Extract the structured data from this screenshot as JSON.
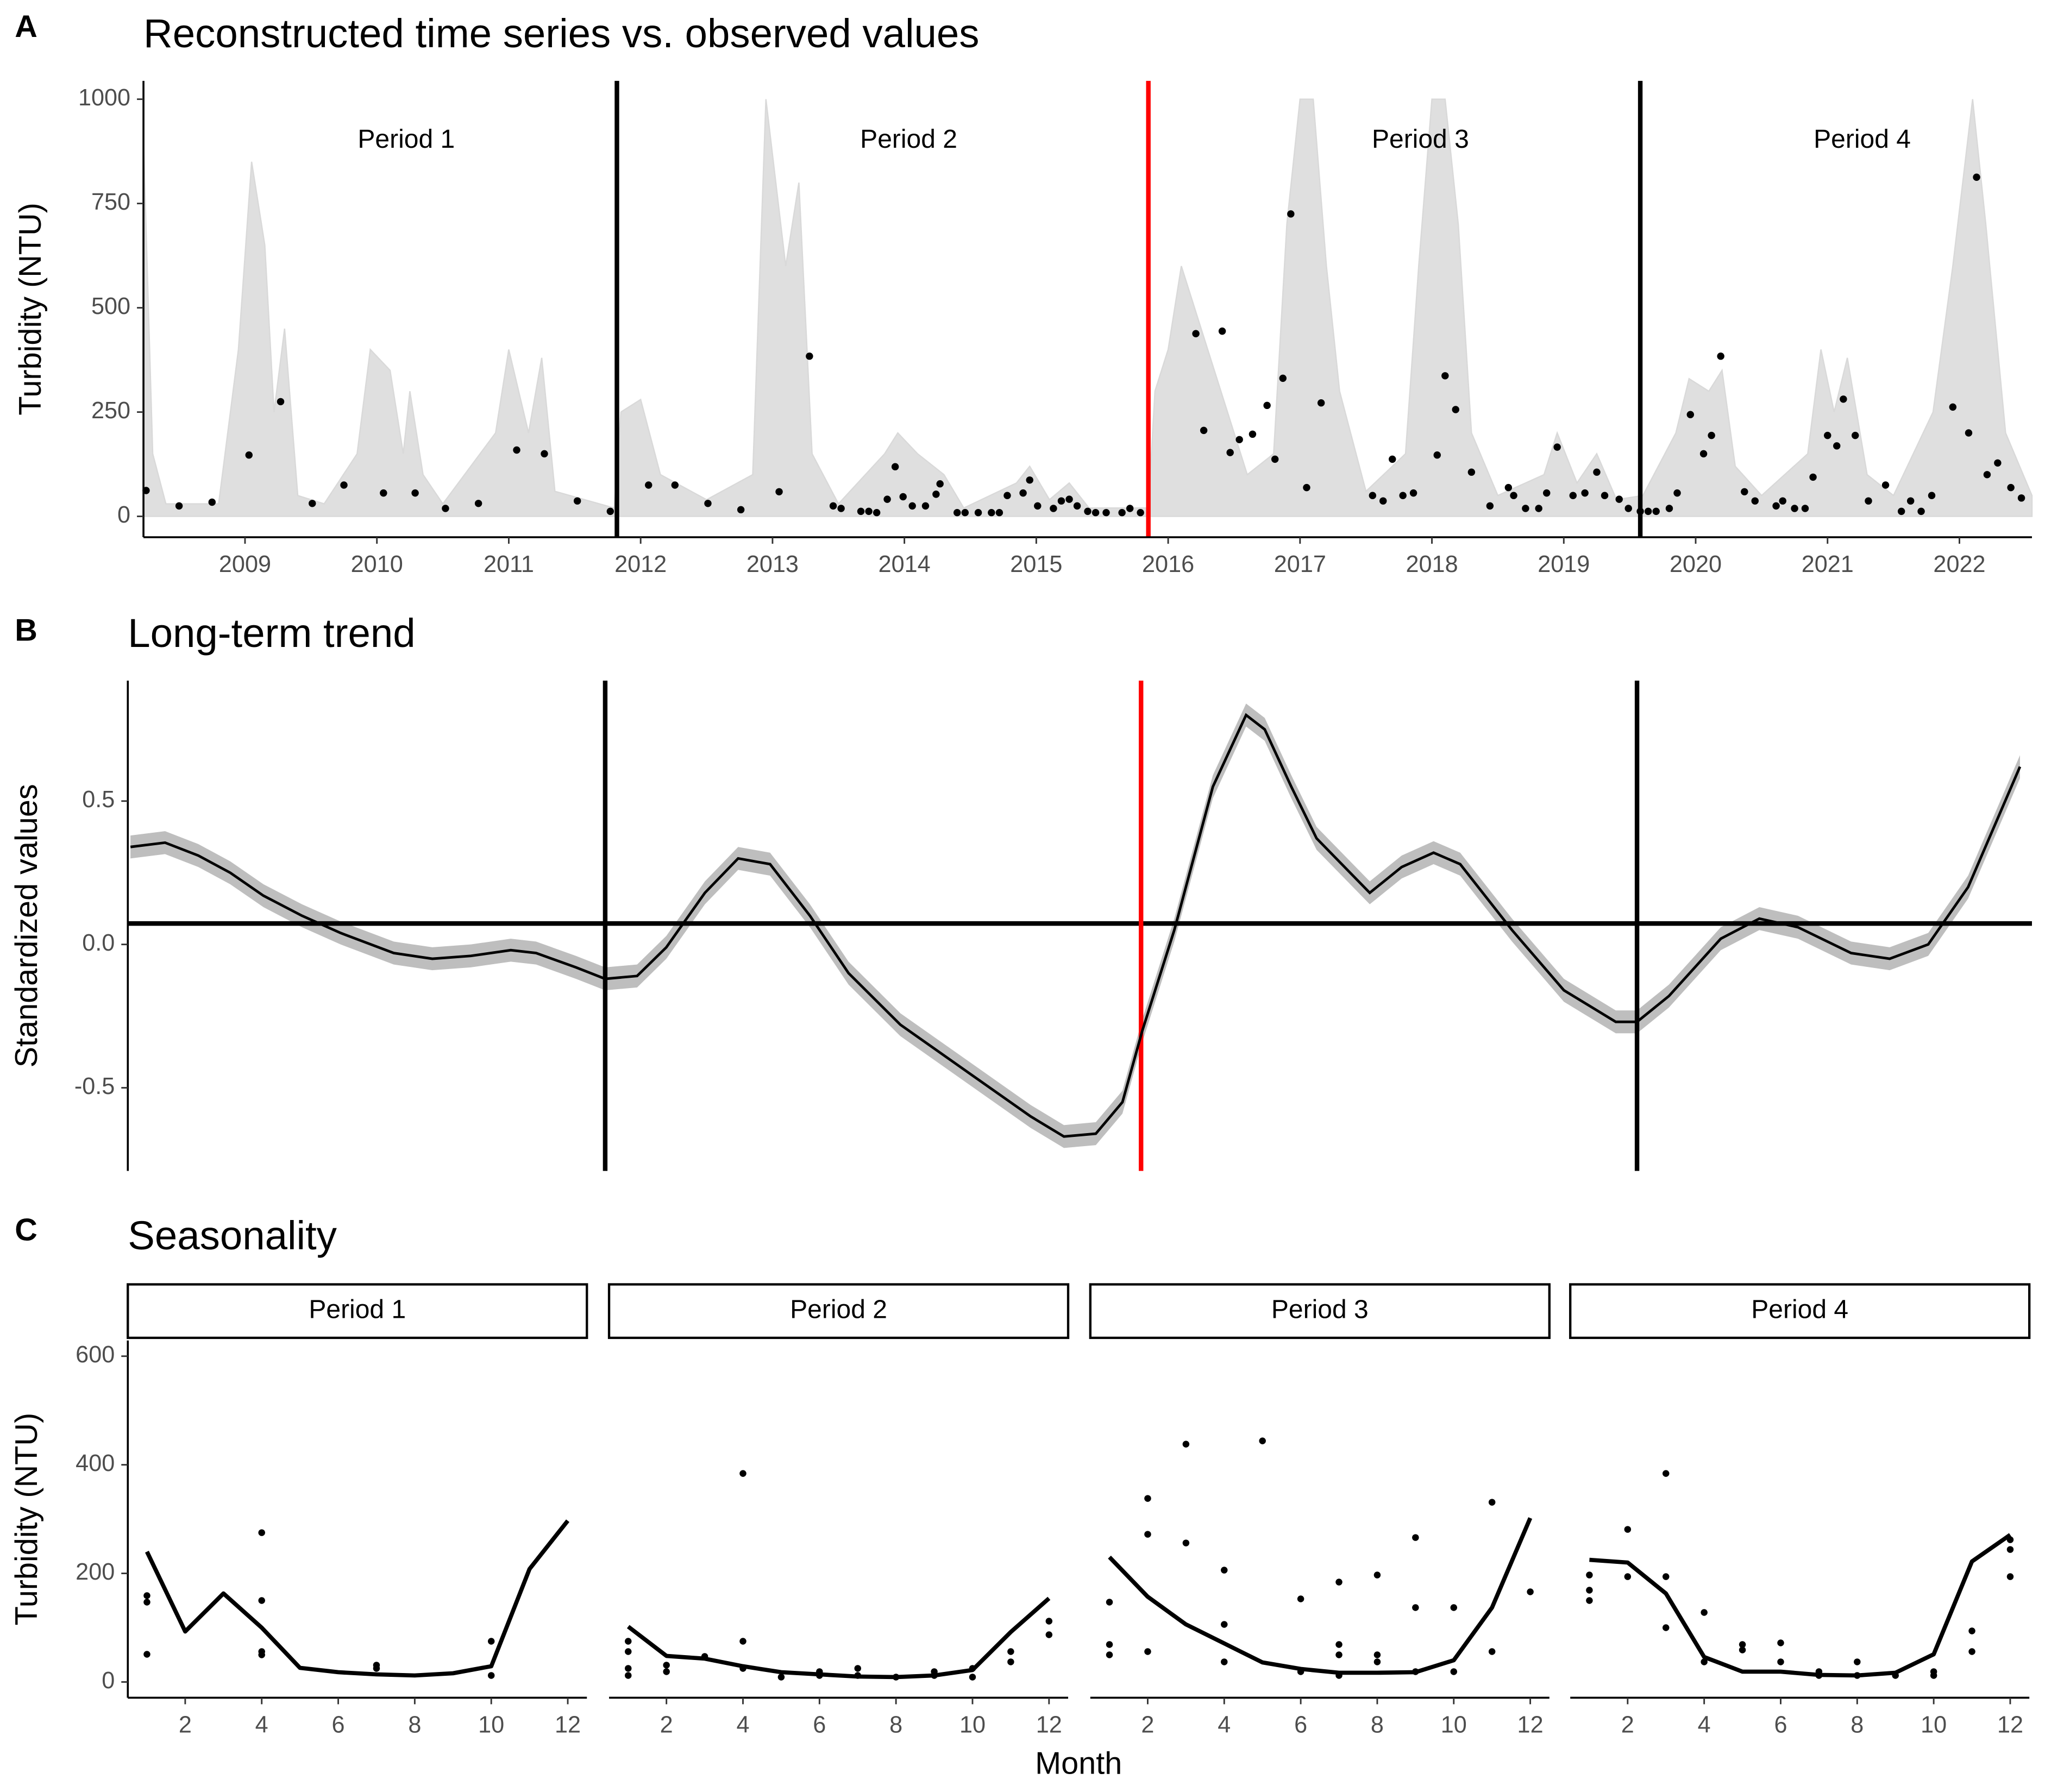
{
  "chart_data": [
    {
      "type": "scatter",
      "label": "A",
      "title": "Reconstructed time series vs. observed values",
      "ylabel": "Turbidity (NTU)",
      "color": "#000000",
      "x": [
        2008.25,
        2008.5,
        2008.75,
        2009.03,
        2009.27,
        2009.51,
        2009.75,
        2010.05,
        2010.29,
        2010.52,
        2010.77,
        2011.06,
        2011.27,
        2011.52,
        2011.77,
        2012.06,
        2012.26,
        2012.51,
        2012.76,
        2013.05,
        2013.28,
        2013.46,
        2013.52,
        2013.67,
        2013.73,
        2013.79,
        2013.87,
        2013.93,
        2013.99,
        2014.06,
        2014.16,
        2014.24,
        2014.27,
        2014.4,
        2014.46,
        2014.56,
        2014.66,
        2014.72,
        2014.78,
        2014.9,
        2014.95,
        2015.01,
        2015.13,
        2015.19,
        2015.25,
        2015.31,
        2015.39,
        2015.45,
        2015.53,
        2015.65,
        2015.71,
        2015.79,
        2016.21,
        2016.27,
        2016.41,
        2016.47,
        2016.54,
        2016.64,
        2016.75,
        2016.81,
        2016.87,
        2016.93,
        2017.05,
        2017.16,
        2017.55,
        2017.63,
        2017.7,
        2017.78,
        2017.86,
        2018.04,
        2018.1,
        2018.18,
        2018.3,
        2018.44,
        2018.58,
        2018.62,
        2018.71,
        2018.81,
        2018.87,
        2018.95,
        2019.07,
        2019.16,
        2019.25,
        2019.31,
        2019.42,
        2019.49,
        2019.58,
        2019.64,
        2019.7,
        2019.8,
        2019.86,
        2019.96,
        2020.06,
        2020.12,
        2020.19,
        2020.37,
        2020.45,
        2020.61,
        2020.66,
        2020.75,
        2020.83,
        2020.89,
        2021.0,
        2021.07,
        2021.12,
        2021.21,
        2021.31,
        2021.44,
        2021.56,
        2021.63,
        2021.71,
        2021.79,
        2021.95,
        2022.07,
        2022.13,
        2022.21,
        2022.29,
        2022.39,
        2022.47
      ],
      "values": [
        62,
        25,
        34,
        147,
        275,
        31,
        75,
        56,
        56,
        19,
        31,
        159,
        150,
        37,
        12,
        75,
        75,
        31,
        16,
        59,
        384,
        25,
        19,
        12,
        12,
        9,
        41,
        119,
        47,
        25,
        25,
        53,
        78,
        9,
        9,
        9,
        9,
        9,
        50,
        56,
        87,
        25,
        19,
        37,
        41,
        25,
        12,
        9,
        9,
        9,
        19,
        9,
        438,
        206,
        444,
        153,
        184,
        197,
        266,
        137,
        331,
        725,
        69,
        272,
        50,
        37,
        137,
        50,
        56,
        147,
        337,
        256,
        106,
        25,
        69,
        50,
        19,
        19,
        56,
        166,
        50,
        56,
        106,
        50,
        41,
        19,
        12,
        12,
        12,
        19,
        56,
        244,
        150,
        194,
        384,
        59,
        37,
        25,
        37,
        19,
        19,
        94,
        194,
        169,
        281,
        194,
        37,
        75,
        12,
        37,
        12,
        50,
        262,
        200,
        813,
        100,
        128,
        69,
        44
      ],
      "envelope": {
        "color": "#d9d9d9",
        "x": [
          2008.23,
          2008.3,
          2008.4,
          2008.8,
          2008.95,
          2009.05,
          2009.15,
          2009.22,
          2009.3,
          2009.4,
          2009.6,
          2009.85,
          2009.95,
          2010.1,
          2010.2,
          2010.25,
          2010.35,
          2010.5,
          2010.9,
          2011.0,
          2011.15,
          2011.25,
          2011.35,
          2011.8,
          2011.85,
          2012.0,
          2012.15,
          2012.5,
          2012.85,
          2012.95,
          2013.1,
          2013.2,
          2013.3,
          2013.5,
          2013.85,
          2013.95,
          2014.1,
          2014.3,
          2014.45,
          2014.85,
          2014.95,
          2015.1,
          2015.25,
          2015.4,
          2015.85,
          2015.9,
          2016.0,
          2016.1,
          2016.25,
          2016.4,
          2016.6,
          2016.8,
          2016.9,
          2017.0,
          2017.1,
          2017.2,
          2017.3,
          2017.5,
          2017.8,
          2017.9,
          2018.0,
          2018.1,
          2018.2,
          2018.3,
          2018.5,
          2018.85,
          2018.95,
          2019.1,
          2019.25,
          2019.4,
          2019.6,
          2019.85,
          2019.95,
          2020.1,
          2020.2,
          2020.3,
          2020.5,
          2020.85,
          2020.95,
          2021.05,
          2021.15,
          2021.3,
          2021.5,
          2021.8,
          2021.95,
          2022.1,
          2022.2,
          2022.35,
          2022.55
        ],
        "values": [
          900,
          150,
          30,
          30,
          400,
          850,
          650,
          250,
          450,
          50,
          30,
          150,
          400,
          350,
          150,
          300,
          100,
          30,
          200,
          400,
          200,
          380,
          60,
          20,
          250,
          280,
          100,
          40,
          100,
          1000,
          600,
          800,
          150,
          30,
          150,
          200,
          150,
          100,
          20,
          80,
          120,
          40,
          80,
          20,
          20,
          300,
          400,
          600,
          450,
          300,
          100,
          150,
          700,
          1000,
          1000,
          600,
          300,
          60,
          150,
          600,
          1000,
          1000,
          700,
          200,
          50,
          100,
          200,
          80,
          150,
          40,
          50,
          200,
          330,
          300,
          350,
          120,
          50,
          150,
          400,
          250,
          380,
          100,
          50,
          250,
          600,
          1000,
          700,
          200,
          50
        ]
      },
      "xlim": [
        2008.23,
        2022.55
      ],
      "xticks": [
        2009,
        2010,
        2011,
        2012,
        2013,
        2014,
        2015,
        2016,
        2017,
        2018,
        2019,
        2020,
        2021,
        2022
      ],
      "ylim": [
        -50,
        1044
      ],
      "yticks": [
        0,
        250,
        500,
        750,
        1000
      ],
      "vlines": [
        {
          "value": 2011.82,
          "color": "#000000"
        },
        {
          "value": 2015.85,
          "color": "#ff0000"
        },
        {
          "value": 2019.58,
          "color": "#000000"
        }
      ],
      "periods": [
        "Period 1",
        "Period 2",
        "Period 3",
        "Period 4"
      ]
    },
    {
      "type": "line",
      "label": "B",
      "title": "Long-term trend",
      "ylabel": "Standardized values",
      "color": "#000000",
      "ribbon_color": "#bebebe",
      "x": [
        2008.25,
        2008.51,
        2008.76,
        2009.0,
        2009.25,
        2009.54,
        2009.83,
        2010.23,
        2010.52,
        2010.81,
        2011.11,
        2011.3,
        2011.6,
        2011.82,
        2012.06,
        2012.28,
        2012.57,
        2012.82,
        2013.06,
        2013.36,
        2013.65,
        2014.04,
        2014.53,
        2015.02,
        2015.27,
        2015.51,
        2015.71,
        2015.86,
        2016.1,
        2016.39,
        2016.64,
        2016.78,
        2016.98,
        2017.17,
        2017.57,
        2017.81,
        2018.05,
        2018.25,
        2018.64,
        2019.03,
        2019.42,
        2019.58,
        2019.82,
        2020.21,
        2020.5,
        2020.79,
        2021.19,
        2021.48,
        2021.77,
        2022.07,
        2022.46
      ],
      "values": [
        0.34,
        0.355,
        0.31,
        0.25,
        0.17,
        0.1,
        0.04,
        -0.03,
        -0.05,
        -0.04,
        -0.02,
        -0.03,
        -0.08,
        -0.12,
        -0.11,
        -0.01,
        0.18,
        0.3,
        0.28,
        0.1,
        -0.1,
        -0.28,
        -0.44,
        -0.6,
        -0.67,
        -0.66,
        -0.55,
        -0.3,
        0.05,
        0.55,
        0.8,
        0.75,
        0.55,
        0.37,
        0.18,
        0.27,
        0.32,
        0.28,
        0.05,
        -0.16,
        -0.27,
        -0.27,
        -0.18,
        0.02,
        0.09,
        0.06,
        -0.03,
        -0.05,
        0.0,
        0.2,
        0.62
      ],
      "ci_halfwidth": 0.04,
      "xlim": [
        2008.23,
        2022.55
      ],
      "ylim": [
        -0.79,
        0.92
      ],
      "yticks": [
        -0.5,
        {
          "value": 0,
          "label": "0.0"
        },
        0.5
      ],
      "hline": 0.073,
      "vlines": [
        {
          "value": 2011.82,
          "color": "#000000"
        },
        {
          "value": 2015.85,
          "color": "#ff0000"
        },
        {
          "value": 2019.58,
          "color": "#000000"
        }
      ]
    },
    {
      "type": "line",
      "label": "C",
      "title": "Seasonality",
      "ylabel": "Turbidity (NTU)",
      "xlabel": "Month",
      "color": "#000000",
      "x": [
        1,
        2,
        3,
        4,
        5,
        6,
        7,
        8,
        9,
        10,
        11,
        12
      ],
      "xlim": [
        0.5,
        12.5
      ],
      "xticks": [
        2,
        4,
        6,
        8,
        10,
        12
      ],
      "ylim": [
        -29,
        629
      ],
      "yticks": [
        0,
        200,
        400,
        600
      ],
      "facets": [
        {
          "name": "Period 1",
          "values": [
            240,
            93,
            163,
            100,
            26,
            18,
            14,
            12,
            16,
            29,
            208,
            297
          ],
          "points": {
            "x": [
              1,
              1,
              1,
              4,
              4,
              4,
              4,
              7,
              7,
              10,
              10
            ],
            "values": [
              51,
              147,
              159,
              275,
              150,
              56,
              50,
              31,
              25,
              75,
              12
            ]
          }
        },
        {
          "name": "Period 2",
          "values": [
            102,
            48,
            43,
            29,
            18,
            14,
            10,
            9,
            12,
            22,
            92,
            154
          ],
          "points": {
            "x": [
              1,
              1,
              1,
              1,
              2,
              2,
              3,
              4,
              4,
              4,
              5,
              6,
              6,
              7,
              7,
              8,
              9,
              9,
              10,
              10,
              11,
              11,
              12,
              12
            ],
            "values": [
              75,
              56,
              25,
              12,
              31,
              19,
              47,
              384,
              75,
              25,
              9,
              19,
              12,
              25,
              12,
              9,
              12,
              19,
              25,
              9,
              56,
              37,
              112,
              87
            ]
          }
        },
        {
          "name": "Period 3",
          "values": [
            230,
            157,
            106,
            71,
            36,
            24,
            17,
            17,
            18,
            40,
            137,
            302
          ],
          "points": {
            "x": [
              1,
              1,
              1,
              2,
              2,
              2,
              3,
              3,
              4,
              4,
              4,
              5,
              6,
              6,
              7,
              7,
              7,
              7,
              8,
              8,
              8,
              9,
              9,
              9,
              10,
              10,
              11,
              11,
              12
            ],
            "values": [
              147,
              69,
              50,
              338,
              272,
              56,
              438,
              256,
              206,
              106,
              37,
              444,
              153,
              19,
              184,
              69,
              50,
              12,
              197,
              50,
              37,
              266,
              137,
              19,
              137,
              19,
              331,
              56,
              166
            ]
          }
        },
        {
          "name": "Period 4",
          "values": [
            225,
            220,
            163,
            46,
            19,
            19,
            13,
            12,
            17,
            51,
            222,
            271
          ],
          "points": {
            "x": [
              1,
              1,
              1,
              2,
              2,
              3,
              3,
              3,
              4,
              4,
              5,
              5,
              6,
              6,
              7,
              7,
              8,
              8,
              9,
              10,
              10,
              11,
              11,
              12,
              12,
              12
            ],
            "values": [
              197,
              169,
              150,
              281,
              194,
              384,
              194,
              100,
              128,
              37,
              69,
              59,
              72,
              37,
              19,
              12,
              37,
              12,
              12,
              19,
              12,
              94,
              56,
              262,
              244,
              194
            ]
          }
        }
      ]
    }
  ]
}
